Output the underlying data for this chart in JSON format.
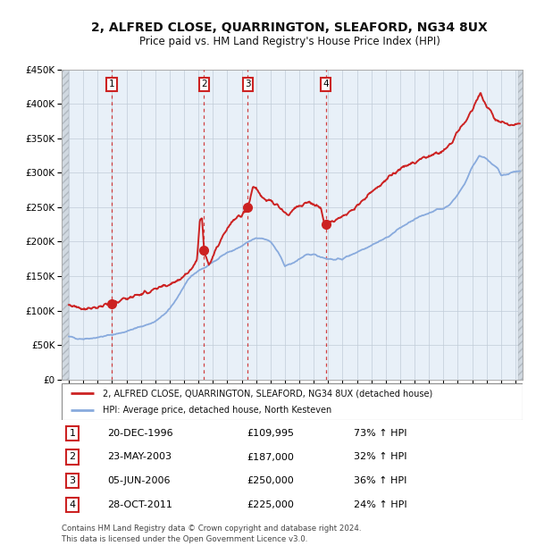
{
  "title": "2, ALFRED CLOSE, QUARRINGTON, SLEAFORD, NG34 8UX",
  "subtitle": "Price paid vs. HM Land Registry's House Price Index (HPI)",
  "transactions": [
    {
      "num": 1,
      "date": "20-DEC-1996",
      "price": 109995,
      "price_str": "£109,995",
      "year": 1996.97,
      "pct": "73%",
      "dir": "↑"
    },
    {
      "num": 2,
      "date": "23-MAY-2003",
      "price": 187000,
      "price_str": "£187,000",
      "year": 2003.39,
      "pct": "32%",
      "dir": "↑"
    },
    {
      "num": 3,
      "date": "05-JUN-2006",
      "price": 250000,
      "price_str": "£250,000",
      "year": 2006.43,
      "pct": "36%",
      "dir": "↑"
    },
    {
      "num": 4,
      "date": "28-OCT-2011",
      "price": 225000,
      "price_str": "£225,000",
      "year": 2011.83,
      "pct": "24%",
      "dir": "↑"
    }
  ],
  "legend_line1": "2, ALFRED CLOSE, QUARRINGTON, SLEAFORD, NG34 8UX (detached house)",
  "legend_line2": "HPI: Average price, detached house, North Kesteven",
  "footer1": "Contains HM Land Registry data © Crown copyright and database right 2024.",
  "footer2": "This data is licensed under the Open Government Licence v3.0.",
  "property_color": "#cc2222",
  "hpi_color": "#88aadd",
  "plot_bg": "#e8f0f8",
  "vline_color": "#cc2222",
  "grid_color": "#c0ccd8",
  "ylim": [
    0,
    450000
  ],
  "yticks": [
    0,
    50000,
    100000,
    150000,
    200000,
    250000,
    300000,
    350000,
    400000,
    450000
  ],
  "xlim_start": 1993.5,
  "xlim_end": 2025.5,
  "hpi_anchors": [
    [
      1994.0,
      62000
    ],
    [
      1994.5,
      60000
    ],
    [
      1995.0,
      59000
    ],
    [
      1995.5,
      60000
    ],
    [
      1996.0,
      61000
    ],
    [
      1996.5,
      63000
    ],
    [
      1997.0,
      65000
    ],
    [
      1997.5,
      67000
    ],
    [
      1998.0,
      70000
    ],
    [
      1998.5,
      73000
    ],
    [
      1999.0,
      77000
    ],
    [
      1999.5,
      80000
    ],
    [
      2000.0,
      84000
    ],
    [
      2000.5,
      92000
    ],
    [
      2001.0,
      102000
    ],
    [
      2001.5,
      118000
    ],
    [
      2002.0,
      135000
    ],
    [
      2002.5,
      150000
    ],
    [
      2003.0,
      158000
    ],
    [
      2003.5,
      163000
    ],
    [
      2004.0,
      170000
    ],
    [
      2004.5,
      178000
    ],
    [
      2005.0,
      184000
    ],
    [
      2005.5,
      188000
    ],
    [
      2006.0,
      193000
    ],
    [
      2006.5,
      200000
    ],
    [
      2007.0,
      205000
    ],
    [
      2007.5,
      205000
    ],
    [
      2008.0,
      200000
    ],
    [
      2008.5,
      185000
    ],
    [
      2009.0,
      165000
    ],
    [
      2009.5,
      168000
    ],
    [
      2010.0,
      175000
    ],
    [
      2010.5,
      180000
    ],
    [
      2011.0,
      182000
    ],
    [
      2011.5,
      178000
    ],
    [
      2012.0,
      175000
    ],
    [
      2012.5,
      174000
    ],
    [
      2013.0,
      175000
    ],
    [
      2013.5,
      180000
    ],
    [
      2014.0,
      185000
    ],
    [
      2014.5,
      190000
    ],
    [
      2015.0,
      195000
    ],
    [
      2015.5,
      200000
    ],
    [
      2016.0,
      205000
    ],
    [
      2016.5,
      212000
    ],
    [
      2017.0,
      220000
    ],
    [
      2017.5,
      226000
    ],
    [
      2018.0,
      232000
    ],
    [
      2018.5,
      237000
    ],
    [
      2019.0,
      242000
    ],
    [
      2019.5,
      246000
    ],
    [
      2020.0,
      248000
    ],
    [
      2020.5,
      255000
    ],
    [
      2021.0,
      268000
    ],
    [
      2021.5,
      285000
    ],
    [
      2022.0,
      308000
    ],
    [
      2022.5,
      325000
    ],
    [
      2023.0,
      320000
    ],
    [
      2023.3,
      315000
    ],
    [
      2023.8,
      305000
    ],
    [
      2024.0,
      295000
    ],
    [
      2024.5,
      298000
    ],
    [
      2025.0,
      302000
    ]
  ],
  "prop_anchors": [
    [
      1994.0,
      108000
    ],
    [
      1994.5,
      106000
    ],
    [
      1995.0,
      103000
    ],
    [
      1995.5,
      104000
    ],
    [
      1996.0,
      105000
    ],
    [
      1996.5,
      107000
    ],
    [
      1996.97,
      109995
    ],
    [
      1997.5,
      114000
    ],
    [
      1998.0,
      118000
    ],
    [
      1998.5,
      121000
    ],
    [
      1999.0,
      124000
    ],
    [
      1999.5,
      127000
    ],
    [
      2000.0,
      130000
    ],
    [
      2000.5,
      134000
    ],
    [
      2001.0,
      138000
    ],
    [
      2001.5,
      144000
    ],
    [
      2002.0,
      150000
    ],
    [
      2002.5,
      160000
    ],
    [
      2002.9,
      175000
    ],
    [
      2003.1,
      230000
    ],
    [
      2003.25,
      235000
    ],
    [
      2003.39,
      187000
    ],
    [
      2003.7,
      168000
    ],
    [
      2004.0,
      178000
    ],
    [
      2004.3,
      192000
    ],
    [
      2004.7,
      210000
    ],
    [
      2005.0,
      220000
    ],
    [
      2005.5,
      232000
    ],
    [
      2006.0,
      238000
    ],
    [
      2006.43,
      250000
    ],
    [
      2006.8,
      280000
    ],
    [
      2007.0,
      278000
    ],
    [
      2007.3,
      268000
    ],
    [
      2007.6,
      262000
    ],
    [
      2008.0,
      258000
    ],
    [
      2008.5,
      252000
    ],
    [
      2009.0,
      242000
    ],
    [
      2009.3,
      237000
    ],
    [
      2009.6,
      248000
    ],
    [
      2010.0,
      252000
    ],
    [
      2010.5,
      256000
    ],
    [
      2011.0,
      254000
    ],
    [
      2011.5,
      248000
    ],
    [
      2011.83,
      225000
    ],
    [
      2012.0,
      227000
    ],
    [
      2012.3,
      230000
    ],
    [
      2012.7,
      233000
    ],
    [
      2013.0,
      236000
    ],
    [
      2013.5,
      242000
    ],
    [
      2014.0,
      252000
    ],
    [
      2014.5,
      262000
    ],
    [
      2015.0,
      272000
    ],
    [
      2015.5,
      280000
    ],
    [
      2016.0,
      290000
    ],
    [
      2016.5,
      298000
    ],
    [
      2017.0,
      305000
    ],
    [
      2017.5,
      310000
    ],
    [
      2018.0,
      315000
    ],
    [
      2018.5,
      320000
    ],
    [
      2019.0,
      324000
    ],
    [
      2019.5,
      328000
    ],
    [
      2020.0,
      332000
    ],
    [
      2020.5,
      342000
    ],
    [
      2021.0,
      358000
    ],
    [
      2021.5,
      375000
    ],
    [
      2022.0,
      390000
    ],
    [
      2022.3,
      405000
    ],
    [
      2022.6,
      415000
    ],
    [
      2022.9,
      400000
    ],
    [
      2023.0,
      395000
    ],
    [
      2023.3,
      390000
    ],
    [
      2023.6,
      378000
    ],
    [
      2024.0,
      372000
    ],
    [
      2024.5,
      368000
    ],
    [
      2025.0,
      370000
    ]
  ]
}
